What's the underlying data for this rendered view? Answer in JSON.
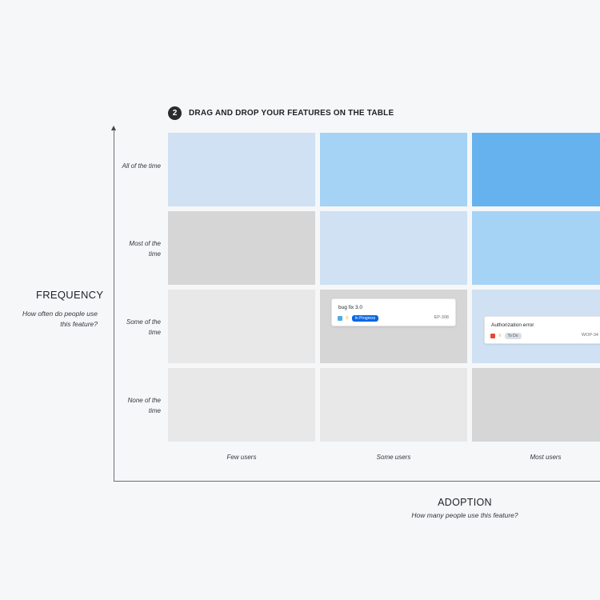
{
  "step": {
    "number": "2",
    "title": "DRAG AND DROP YOUR FEATURES ON THE TABLE"
  },
  "frequency": {
    "title": "FREQUENCY",
    "subtitle": "How often do people use this feature?"
  },
  "adoption": {
    "title": "ADOPTION",
    "subtitle": "How many people use this feature?"
  },
  "rows": [
    {
      "label": "All of the time"
    },
    {
      "label": "Most of the time"
    },
    {
      "label": "Some of the time"
    },
    {
      "label": "None of the time"
    }
  ],
  "columns": [
    {
      "label": "Few users"
    },
    {
      "label": "Some users"
    },
    {
      "label": "Most users"
    }
  ],
  "cell_colors": [
    [
      "#cfe1f3",
      "#a4d3f6",
      "#66b2ef"
    ],
    [
      "#d6d6d6",
      "#cfe1f3",
      "#a4d3f6"
    ],
    [
      "#e8e8e8",
      "#d6d6d6",
      "#cfe1f3"
    ],
    [
      "#e8e8e8",
      "#e8e8e8",
      "#d6d6d6"
    ]
  ],
  "cards": [
    {
      "title": "bug fix 3.0",
      "status": "In Progress",
      "key": "EP-308",
      "type_icon": "checkbox-icon",
      "type_color": "#4bade8",
      "priority_icon": "priority-medium-icon",
      "status_bg": "#0c66e4",
      "status_fg": "#ffffff",
      "row": 2,
      "column": 1
    },
    {
      "title": "Authorization error",
      "status": "To Do",
      "key": "WOP-34",
      "type_icon": "bug-icon",
      "type_color": "#e5493a",
      "priority_icon": "priority-medium-icon",
      "status_bg": "#dcdfe4",
      "status_fg": "#44546f",
      "row": 2,
      "column": 2
    }
  ]
}
